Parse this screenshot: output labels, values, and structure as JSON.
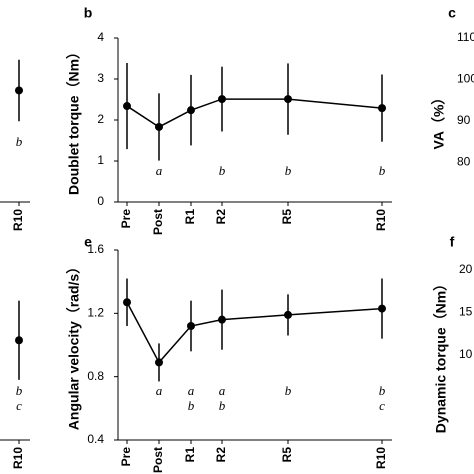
{
  "chart_data": [
    {
      "type": "line",
      "categories": [
        "R10"
      ],
      "values": [
        2.72
      ],
      "errors": [
        0.75
      ],
      "ylim": [
        0,
        4
      ],
      "annotations": [
        [
          "b"
        ]
      ],
      "color": "#000000"
    },
    {
      "type": "line",
      "panel": "b",
      "y_label": "Doublet torque（Nm）",
      "categories": [
        "Pre",
        "Post",
        "R1",
        "R2",
        "R5",
        "R10"
      ],
      "values": [
        2.34,
        1.83,
        2.24,
        2.51,
        2.51,
        2.29
      ],
      "errors": [
        1.05,
        0.82,
        0.86,
        0.79,
        0.87,
        0.82
      ],
      "ylim": [
        0,
        4
      ],
      "yticks": [
        0,
        1,
        2,
        3,
        4
      ],
      "annotations": [
        null,
        [
          "a"
        ],
        null,
        [
          "b"
        ],
        [
          "b"
        ],
        [
          "b"
        ]
      ],
      "color": "#000000"
    },
    {
      "type": "axis",
      "panel": "c",
      "y_label": "VA（%）",
      "ylim": [
        70,
        110
      ],
      "yticks": [
        80,
        90,
        100,
        110
      ]
    },
    {
      "type": "line",
      "categories": [
        "R10"
      ],
      "values": [
        1.03
      ],
      "errors": [
        0.25
      ],
      "ylim": [
        0.4,
        1.6
      ],
      "annotations": [
        [
          "b",
          "c"
        ]
      ],
      "color": "#000000"
    },
    {
      "type": "line",
      "panel": "e",
      "y_label": "Angular velocity（rad/s）",
      "categories": [
        "Pre",
        "Post",
        "R1",
        "R2",
        "R5",
        "R10"
      ],
      "values": [
        1.27,
        0.89,
        1.12,
        1.16,
        1.19,
        1.23
      ],
      "errors": [
        0.15,
        0.12,
        0.16,
        0.19,
        0.13,
        0.19
      ],
      "ylim": [
        0.4,
        1.6
      ],
      "yticks": [
        0.4,
        0.8,
        1.2,
        1.6
      ],
      "annotations": [
        null,
        [
          "a"
        ],
        [
          "a",
          "b"
        ],
        [
          "a",
          "b"
        ],
        [
          "b"
        ],
        [
          "b",
          "c"
        ]
      ],
      "color": "#000000"
    },
    {
      "type": "axis",
      "panel": "f",
      "y_label": "Dynamic torque（Nm）",
      "ylim": [
        0,
        20
      ],
      "yticks": [
        10,
        15,
        20
      ]
    }
  ]
}
